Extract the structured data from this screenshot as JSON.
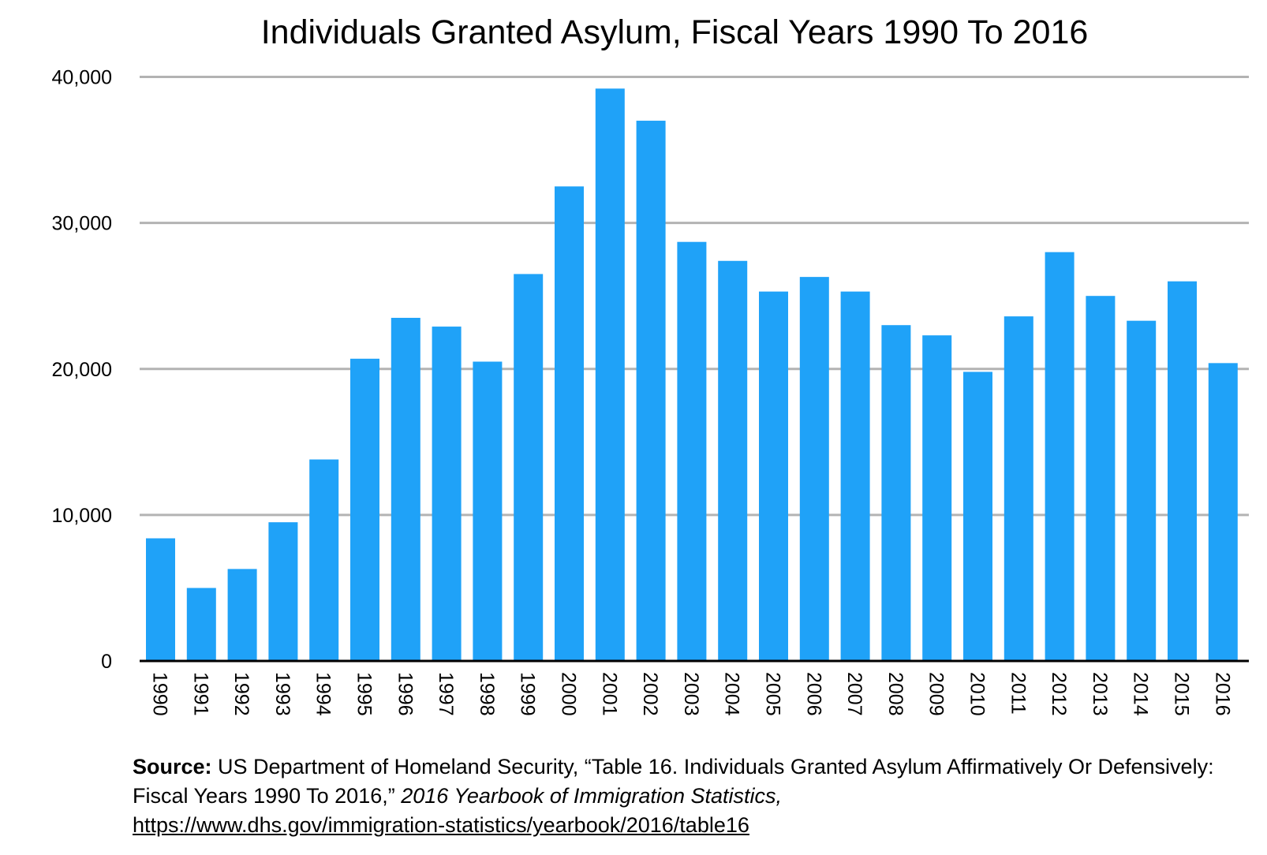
{
  "chart_data": {
    "type": "bar",
    "title": "Individuals Granted Asylum, Fiscal Years 1990 To 2016",
    "xlabel": "",
    "ylabel": "",
    "ylim": [
      0,
      40000
    ],
    "yticks": [
      "0",
      "10,000",
      "20,000",
      "30,000",
      "40,000"
    ],
    "grid": true,
    "bar_color": "#1fa2f8",
    "categories": [
      "1990",
      "1991",
      "1992",
      "1993",
      "1994",
      "1995",
      "1996",
      "1997",
      "1998",
      "1999",
      "2000",
      "2001",
      "2002",
      "2003",
      "2004",
      "2005",
      "2006",
      "2007",
      "2008",
      "2009",
      "2010",
      "2011",
      "2012",
      "2013",
      "2014",
      "2015",
      "2016"
    ],
    "values": [
      8400,
      5000,
      6300,
      9500,
      13800,
      20700,
      23500,
      22900,
      20500,
      26500,
      32500,
      39200,
      37000,
      28700,
      27400,
      25300,
      26300,
      25300,
      23000,
      22300,
      19800,
      23600,
      28000,
      25000,
      23300,
      26000,
      20400
    ]
  },
  "source": {
    "label": "Source:",
    "text": " US Department of Homeland Security, “Table 16. Individuals Granted Asylum Affirmatively Or Defensively: Fiscal Years 1990 To 2016,”  ",
    "publication": "2016 Yearbook of Immigration Statistics,",
    "url": "https://www.dhs.gov/immigration-statistics/yearbook/2016/table16"
  }
}
